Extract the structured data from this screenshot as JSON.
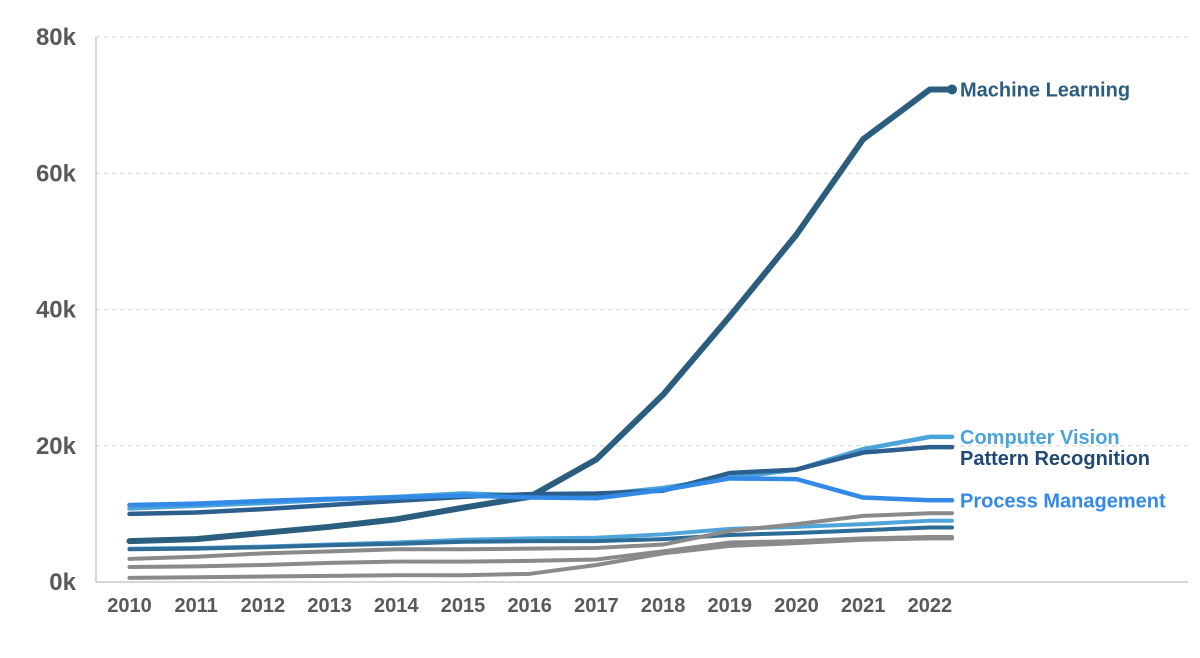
{
  "chart_data": {
    "type": "line",
    "title": "",
    "xlabel": "",
    "ylabel": "",
    "x": [
      2010,
      2011,
      2012,
      2013,
      2014,
      2015,
      2016,
      2017,
      2018,
      2019,
      2020,
      2021,
      2022
    ],
    "x_tick_labels": [
      "2010",
      "2011",
      "2012",
      "2013",
      "2014",
      "2015",
      "2016",
      "2017",
      "2018",
      "2019",
      "2020",
      "2021",
      "2022"
    ],
    "y_axis": {
      "range_thousands": [
        0,
        80
      ],
      "ticks_thousands": [
        0,
        20,
        40,
        60,
        80
      ],
      "tick_labels": [
        "0k",
        "20k",
        "40k",
        "60k",
        "80k"
      ]
    },
    "grid": {
      "horizontal_dashed_at": [
        20,
        40,
        60,
        80
      ],
      "gridline_color": "#d9d9d9",
      "axis_line_color": "#c9c9c9"
    },
    "legend_position": "right-end-of-line",
    "colors": {
      "machine_learning": "#2b5d7f",
      "computer_vision": "#4aa3d9",
      "pattern_recognition": "#2c5f8e",
      "pattern_recognition_label": "#1f4874",
      "process_management": "#3389e6",
      "unlabeled_light_blue": "#4fa5da",
      "unlabeled_steel_blue": "#2d6c96",
      "unlabeled_gray": "#8a8a8a",
      "tick_text": "#595959"
    },
    "series": [
      {
        "name": "Machine Learning",
        "labeled": true,
        "end_dot": true,
        "color": "#2b5d7f",
        "label_color": "#2b5d7f",
        "stroke_width": 6,
        "values_thousands": [
          6.0,
          6.3,
          7.2,
          8.1,
          9.2,
          10.9,
          12.5,
          18.0,
          27.5,
          39.0,
          51.0,
          65.0,
          72.3
        ]
      },
      {
        "name": "Computer Vision",
        "labeled": true,
        "end_dot": false,
        "color": "#4aa3d9",
        "label_color": "#4aa3d9",
        "stroke_width": 4.5,
        "values_thousands": [
          10.8,
          11.2,
          11.6,
          12.1,
          12.5,
          13.0,
          12.7,
          12.8,
          13.8,
          15.3,
          16.5,
          19.5,
          21.3
        ]
      },
      {
        "name": "Pattern Recognition",
        "labeled": true,
        "end_dot": false,
        "color": "#2c5f8e",
        "label_color": "#1f4874",
        "stroke_width": 4.5,
        "values_thousands": [
          10.0,
          10.2,
          10.7,
          11.3,
          11.9,
          12.5,
          12.9,
          13.0,
          13.4,
          16.0,
          16.5,
          19.0,
          19.8
        ]
      },
      {
        "name": "Process Management",
        "labeled": true,
        "end_dot": false,
        "color": "#3389e6",
        "label_color": "#3389e6",
        "stroke_width": 4.5,
        "values_thousands": [
          11.3,
          11.5,
          11.9,
          12.2,
          12.4,
          12.7,
          12.4,
          12.3,
          13.5,
          15.2,
          15.1,
          12.4,
          12.0
        ]
      },
      {
        "name": "unlabeled-light-blue",
        "labeled": false,
        "end_dot": false,
        "color": "#4fa5da",
        "stroke_width": 4,
        "values_thousands": [
          4.9,
          5.0,
          5.2,
          5.5,
          5.8,
          6.2,
          6.4,
          6.5,
          7.0,
          7.8,
          8.1,
          8.5,
          9.0
        ]
      },
      {
        "name": "unlabeled-steel-blue",
        "labeled": false,
        "end_dot": false,
        "color": "#2d6c96",
        "stroke_width": 4,
        "values_thousands": [
          4.8,
          4.9,
          5.1,
          5.4,
          5.6,
          5.9,
          6.0,
          6.0,
          6.3,
          6.9,
          7.2,
          7.6,
          8.0
        ]
      },
      {
        "name": "unlabeled-gray-1",
        "labeled": false,
        "end_dot": false,
        "color": "#8a8a8a",
        "stroke_width": 4,
        "values_thousands": [
          3.4,
          3.7,
          4.2,
          4.5,
          4.8,
          4.8,
          4.9,
          5.0,
          5.5,
          7.5,
          8.5,
          9.7,
          10.1
        ]
      },
      {
        "name": "unlabeled-gray-2",
        "labeled": false,
        "end_dot": false,
        "color": "#8a8a8a",
        "stroke_width": 4,
        "values_thousands": [
          2.2,
          2.3,
          2.5,
          2.8,
          3.0,
          3.0,
          3.1,
          3.3,
          4.5,
          5.8,
          6.0,
          6.4,
          6.6
        ]
      },
      {
        "name": "unlabeled-gray-3",
        "labeled": false,
        "end_dot": false,
        "color": "#8a8a8a",
        "stroke_width": 4,
        "values_thousands": [
          0.6,
          0.7,
          0.8,
          0.9,
          1.0,
          1.0,
          1.2,
          2.5,
          4.2,
          5.3,
          5.7,
          6.2,
          6.4
        ]
      }
    ]
  }
}
